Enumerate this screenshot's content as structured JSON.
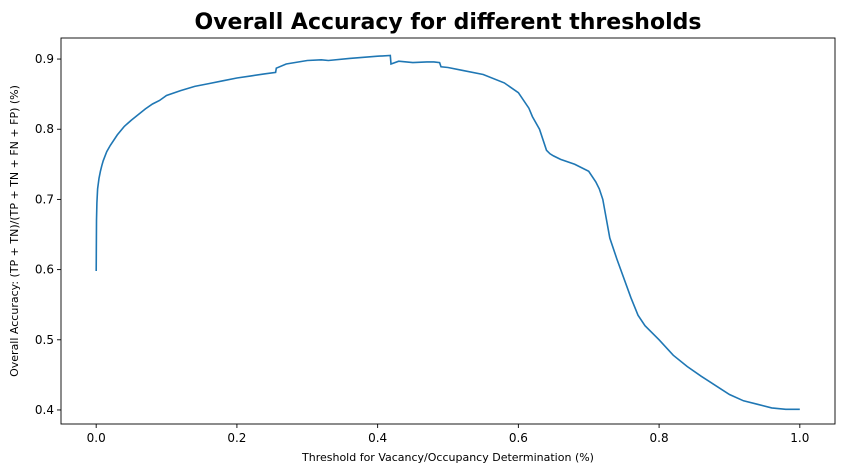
{
  "chart_data": {
    "type": "line",
    "title": "Overall Accuracy for different thresholds",
    "xlabel": "Threshold for Vacancy/Occupancy Determination (%)",
    "ylabel": "Overall Accuracy: (TP + TN)/(TP + TN + FN + FP) (%)",
    "xlim": [
      -0.05,
      1.05
    ],
    "ylim": [
      0.38,
      0.93
    ],
    "xticks": [
      0.0,
      0.2,
      0.4,
      0.6,
      0.8,
      1.0
    ],
    "xtick_labels": [
      "0.0",
      "0.2",
      "0.4",
      "0.6",
      "0.8",
      "1.0"
    ],
    "yticks": [
      0.4,
      0.5,
      0.6,
      0.7,
      0.8,
      0.9
    ],
    "ytick_labels": [
      "0.4",
      "0.5",
      "0.6",
      "0.7",
      "0.8",
      "0.9"
    ],
    "grid": false,
    "line_color": "#1f77b4",
    "x": [
      0.0,
      0.0005,
      0.001,
      0.002,
      0.004,
      0.006,
      0.008,
      0.01,
      0.015,
      0.02,
      0.03,
      0.04,
      0.05,
      0.06,
      0.07,
      0.08,
      0.09,
      0.1,
      0.12,
      0.14,
      0.16,
      0.18,
      0.2,
      0.22,
      0.24,
      0.255,
      0.256,
      0.27,
      0.3,
      0.32,
      0.33,
      0.36,
      0.4,
      0.418,
      0.419,
      0.43,
      0.45,
      0.47,
      0.48,
      0.488,
      0.49,
      0.5,
      0.52,
      0.55,
      0.58,
      0.6,
      0.615,
      0.62,
      0.63,
      0.64,
      0.645,
      0.65,
      0.66,
      0.68,
      0.7,
      0.71,
      0.715,
      0.72,
      0.73,
      0.74,
      0.76,
      0.77,
      0.78,
      0.8,
      0.82,
      0.84,
      0.86,
      0.88,
      0.9,
      0.92,
      0.94,
      0.96,
      0.98,
      1.0
    ],
    "y": [
      0.598,
      0.67,
      0.695,
      0.715,
      0.73,
      0.74,
      0.748,
      0.755,
      0.768,
      0.777,
      0.792,
      0.804,
      0.813,
      0.821,
      0.829,
      0.836,
      0.841,
      0.848,
      0.855,
      0.861,
      0.865,
      0.869,
      0.873,
      0.876,
      0.879,
      0.881,
      0.887,
      0.893,
      0.898,
      0.899,
      0.898,
      0.901,
      0.904,
      0.905,
      0.893,
      0.897,
      0.895,
      0.896,
      0.896,
      0.895,
      0.889,
      0.888,
      0.884,
      0.878,
      0.866,
      0.852,
      0.83,
      0.818,
      0.8,
      0.77,
      0.765,
      0.762,
      0.757,
      0.75,
      0.74,
      0.725,
      0.715,
      0.7,
      0.645,
      0.615,
      0.56,
      0.535,
      0.52,
      0.5,
      0.478,
      0.462,
      0.448,
      0.435,
      0.422,
      0.413,
      0.408,
      0.403,
      0.401,
      0.401
    ]
  }
}
